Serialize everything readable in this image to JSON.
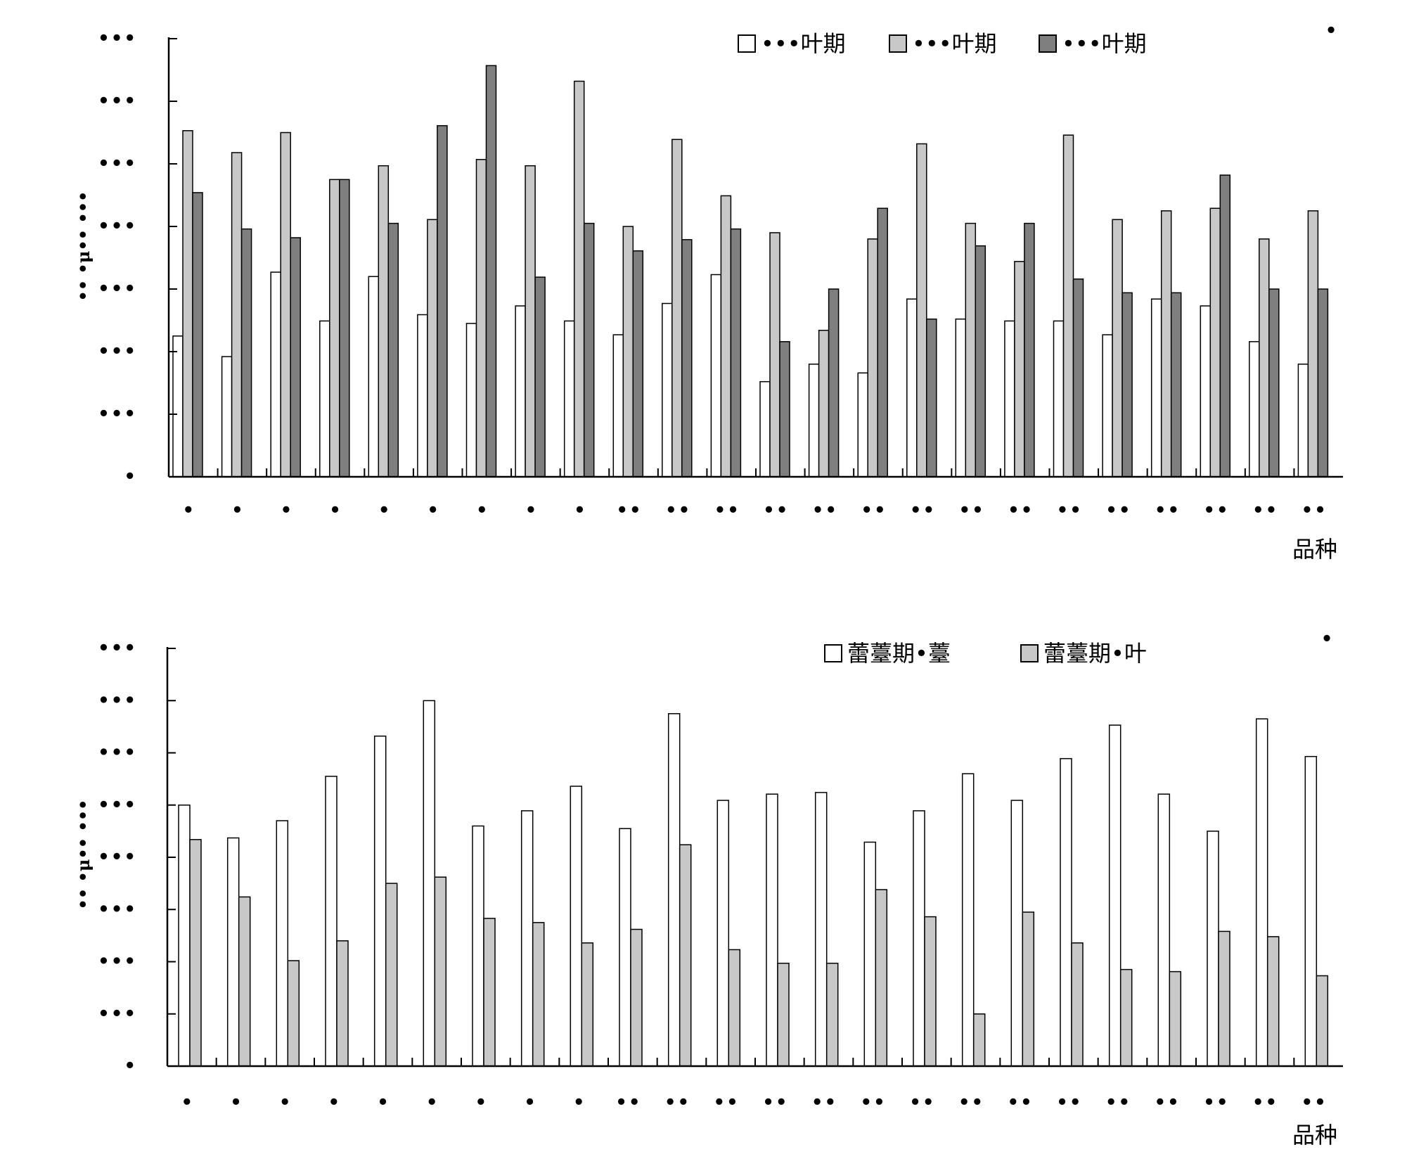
{
  "colors": {
    "axis": "#000000",
    "white_fill": "#ffffff",
    "light_fill": "#c8c8c8",
    "dark_fill": "#7f7f7f",
    "stroke": "#000000"
  },
  "chart_data": [
    {
      "type": "bar",
      "title": "",
      "corner_label": "•",
      "ylabel": "•• •μ•• •••",
      "xlabel": "品种",
      "categories": [
        "•",
        "•",
        "•",
        "•",
        "•",
        "•",
        "•",
        "•",
        "•",
        "••",
        "••",
        "••",
        "••",
        "••",
        "••",
        "••",
        "••",
        "••",
        "••",
        "••",
        "••",
        "••",
        "••",
        "••"
      ],
      "yticks": [
        "•",
        "•••",
        "•••",
        "•••",
        "•••",
        "•••",
        "•••",
        "•••"
      ],
      "ylim": [
        0,
        7
      ],
      "series": [
        {
          "name": "•••叶期",
          "fill": "white",
          "values": [
            2.25,
            1.92,
            3.27,
            2.49,
            3.2,
            2.59,
            2.45,
            2.73,
            2.49,
            2.27,
            2.77,
            3.23,
            1.52,
            1.8,
            1.66,
            2.84,
            2.52,
            2.49,
            2.49,
            2.27,
            2.84,
            2.73,
            2.16,
            1.8
          ]
        },
        {
          "name": "•••叶期",
          "fill": "light",
          "values": [
            5.53,
            5.18,
            5.5,
            4.75,
            4.97,
            4.11,
            5.07,
            4.97,
            6.32,
            4.0,
            5.39,
            4.49,
            3.9,
            2.34,
            3.8,
            5.32,
            4.05,
            3.44,
            5.46,
            4.11,
            4.25,
            4.29,
            3.8,
            4.25
          ]
        },
        {
          "name": "•••叶期",
          "fill": "dark",
          "values": [
            4.54,
            3.96,
            3.82,
            4.75,
            4.05,
            5.61,
            6.57,
            3.19,
            4.05,
            3.61,
            3.79,
            3.96,
            2.16,
            3.0,
            4.29,
            2.52,
            3.69,
            4.05,
            3.16,
            2.94,
            2.94,
            4.82,
            3.0,
            3.0
          ]
        }
      ]
    },
    {
      "type": "bar",
      "title": "",
      "corner_label": "•",
      "ylabel": "•• •μ•• •••",
      "xlabel": "品种",
      "categories": [
        "•",
        "•",
        "•",
        "•",
        "•",
        "•",
        "•",
        "•",
        "•",
        "••",
        "••",
        "••",
        "••",
        "••",
        "••",
        "••",
        "••",
        "••",
        "••",
        "••",
        "••",
        "••",
        "••",
        "••"
      ],
      "yticks": [
        "•",
        "•••",
        "•••",
        "•••",
        "•••",
        "•••",
        "•••",
        "•••",
        "•••"
      ],
      "ylim": [
        0,
        8
      ],
      "series": [
        {
          "name": "蕾薹期•薹",
          "fill": "white",
          "values": [
            5.0,
            4.37,
            4.7,
            5.55,
            6.32,
            7.0,
            4.6,
            4.89,
            5.36,
            4.55,
            6.75,
            5.09,
            5.21,
            5.24,
            4.29,
            4.89,
            5.6,
            5.09,
            5.89,
            6.53,
            5.21,
            4.5,
            6.65,
            5.93
          ]
        },
        {
          "name": "蕾薹期•叶",
          "fill": "light",
          "values": [
            4.34,
            3.24,
            2.02,
            2.4,
            3.5,
            3.62,
            2.83,
            2.75,
            2.36,
            2.62,
            4.24,
            2.23,
            1.97,
            1.97,
            3.38,
            2.86,
            1.0,
            2.95,
            2.36,
            1.85,
            1.81,
            2.58,
            2.48,
            1.73
          ]
        }
      ]
    }
  ]
}
